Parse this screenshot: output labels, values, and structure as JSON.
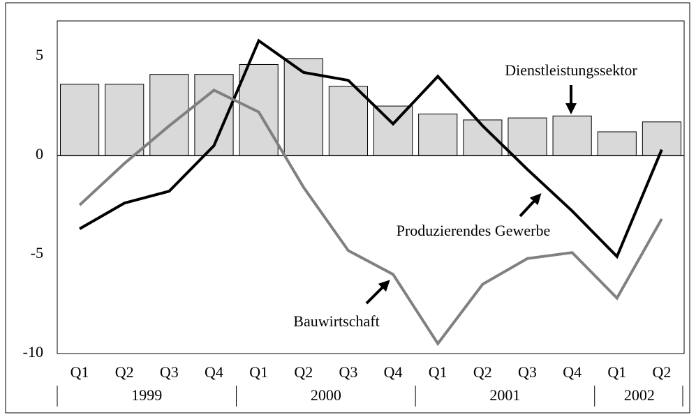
{
  "chart_data": {
    "type": "bar",
    "categories": [
      "Q1",
      "Q2",
      "Q3",
      "Q4",
      "Q1",
      "Q2",
      "Q3",
      "Q4",
      "Q1",
      "Q2",
      "Q3",
      "Q4",
      "Q1",
      "Q2"
    ],
    "year_groups": [
      {
        "label": "1999",
        "quarters": 4
      },
      {
        "label": "2000",
        "quarters": 4
      },
      {
        "label": "2001",
        "quarters": 4
      },
      {
        "label": "2002",
        "quarters": 2
      }
    ],
    "series": [
      {
        "name": "Dienstleistungssektor",
        "type": "bar",
        "color": "#d9d9d9",
        "values": [
          3.6,
          3.6,
          4.1,
          4.1,
          4.6,
          4.9,
          3.5,
          2.5,
          2.1,
          1.8,
          1.9,
          2.0,
          1.2,
          1.7
        ]
      },
      {
        "name": "Produzierendes Gewerbe",
        "type": "line",
        "color": "#000000",
        "values": [
          -3.7,
          -2.4,
          -1.8,
          0.5,
          5.8,
          4.2,
          3.8,
          1.6,
          4.0,
          1.5,
          -0.7,
          -2.8,
          -5.1,
          0.3
        ]
      },
      {
        "name": "Bauwirtschaft",
        "type": "line",
        "color": "#808080",
        "values": [
          -2.5,
          -0.4,
          1.5,
          3.3,
          2.2,
          -1.6,
          -4.8,
          -6.0,
          -9.5,
          -6.5,
          -5.2,
          -4.9,
          -7.2,
          -3.2
        ]
      }
    ],
    "ylim": [
      -10,
      6.8
    ],
    "yticks": [
      -10,
      -5,
      0,
      5
    ],
    "grid": false
  }
}
